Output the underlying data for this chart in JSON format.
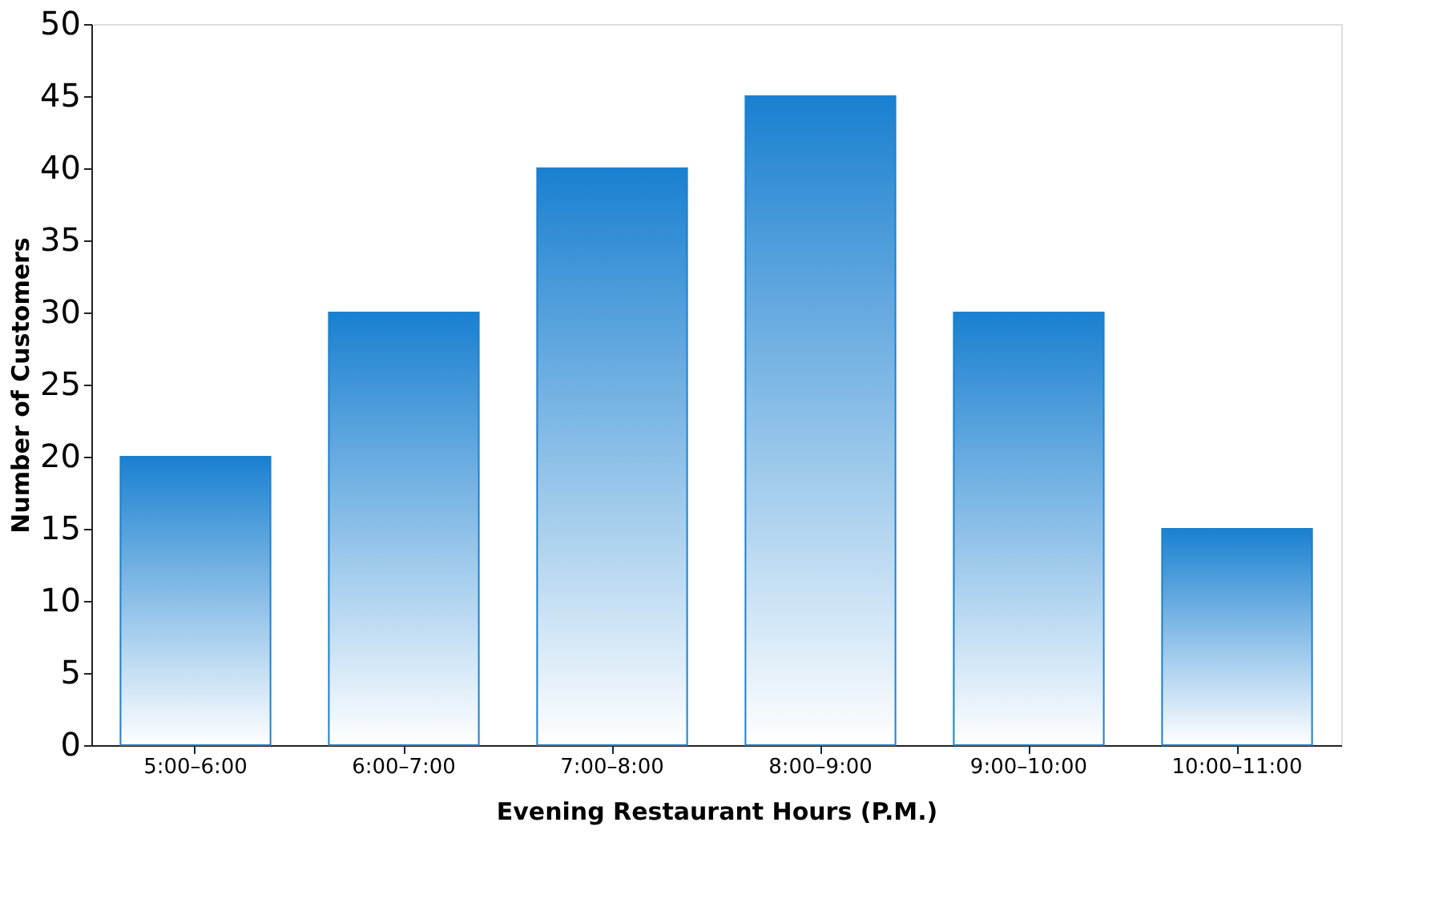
{
  "chart_data": {
    "type": "bar",
    "xlabel": "Evening Restaurant Hours (P.M.)",
    "ylabel": "Number of Customers",
    "categories": [
      "5:00–6:00",
      "6:00–7:00",
      "7:00–8:00",
      "8:00–9:00",
      "9:00–10:00",
      "10:00–11:00"
    ],
    "values": [
      20,
      30,
      40,
      45,
      30,
      15
    ],
    "color": "#1a80d0",
    "ylim": [
      0,
      50
    ],
    "yticks": [
      0,
      5,
      10,
      15,
      20,
      25,
      30,
      35,
      40,
      45,
      50
    ],
    "grid": false
  }
}
